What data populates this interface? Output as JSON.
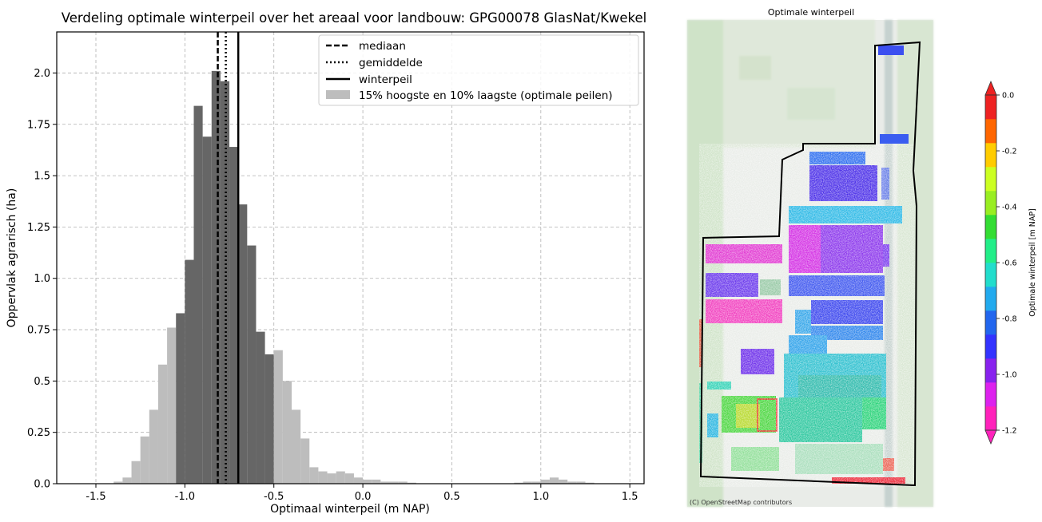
{
  "chart_data": [
    {
      "type": "bar",
      "title": "Verdeling optimale winterpeil over het areaal voor landbouw: GPG00078 GlasNat/Kwekel",
      "xlabel": "Optimaal winterpeil (m NAP)",
      "ylabel": "Oppervlak agrarisch (ha)",
      "xlim": [
        -1.72,
        1.58
      ],
      "ylim": [
        0,
        2.2
      ],
      "xticks": [
        -1.5,
        -1.0,
        -0.5,
        0.0,
        0.5,
        1.0,
        1.5
      ],
      "xtick_labels": [
        "-1.5",
        "-1.0",
        "-0.5",
        "0.0",
        "0.5",
        "1.0",
        "1.5"
      ],
      "yticks": [
        0,
        0.25,
        0.5,
        0.75,
        1.0,
        1.25,
        1.5,
        1.75,
        2.0
      ],
      "ytick_labels": [
        "0.0",
        "0.25",
        "0.5",
        "0.75",
        "1.0",
        "1.25",
        "1.5",
        "1.75",
        "2.0"
      ],
      "grid": true,
      "legend_position": "top-right",
      "legend": [
        {
          "label": "mediaan",
          "style": "dashed"
        },
        {
          "label": "gemiddelde",
          "style": "dotted"
        },
        {
          "label": "winterpeil",
          "style": "solid"
        },
        {
          "label": "15% hoogste en 10% laagste (optimale peilen)",
          "style": "patch"
        }
      ],
      "bin_width": 0.05,
      "bins": [
        {
          "x0": -1.4,
          "value": 0.01,
          "tail": true
        },
        {
          "x0": -1.35,
          "value": 0.03,
          "tail": true
        },
        {
          "x0": -1.3,
          "value": 0.11,
          "tail": true
        },
        {
          "x0": -1.25,
          "value": 0.23,
          "tail": true
        },
        {
          "x0": -1.2,
          "value": 0.36,
          "tail": true
        },
        {
          "x0": -1.15,
          "value": 0.58,
          "tail": true
        },
        {
          "x0": -1.1,
          "value": 0.76,
          "tail": true
        },
        {
          "x0": -1.05,
          "value": 0.83,
          "tail": false
        },
        {
          "x0": -1.0,
          "value": 1.09,
          "tail": false
        },
        {
          "x0": -0.95,
          "value": 1.84,
          "tail": false
        },
        {
          "x0": -0.9,
          "value": 1.69,
          "tail": false
        },
        {
          "x0": -0.85,
          "value": 2.01,
          "tail": false
        },
        {
          "x0": -0.8,
          "value": 1.96,
          "tail": false
        },
        {
          "x0": -0.75,
          "value": 1.64,
          "tail": false
        },
        {
          "x0": -0.7,
          "value": 1.36,
          "tail": false
        },
        {
          "x0": -0.65,
          "value": 1.16,
          "tail": false
        },
        {
          "x0": -0.6,
          "value": 0.74,
          "tail": false
        },
        {
          "x0": -0.55,
          "value": 0.63,
          "tail": false
        },
        {
          "x0": -0.5,
          "value": 0.65,
          "tail": true
        },
        {
          "x0": -0.45,
          "value": 0.5,
          "tail": true
        },
        {
          "x0": -0.4,
          "value": 0.36,
          "tail": true
        },
        {
          "x0": -0.35,
          "value": 0.22,
          "tail": true
        },
        {
          "x0": -0.3,
          "value": 0.08,
          "tail": true
        },
        {
          "x0": -0.25,
          "value": 0.06,
          "tail": true
        },
        {
          "x0": -0.2,
          "value": 0.05,
          "tail": true
        },
        {
          "x0": -0.15,
          "value": 0.06,
          "tail": true
        },
        {
          "x0": -0.1,
          "value": 0.05,
          "tail": true
        },
        {
          "x0": -0.05,
          "value": 0.03,
          "tail": true
        },
        {
          "x0": 0.0,
          "value": 0.02,
          "tail": true
        },
        {
          "x0": 0.05,
          "value": 0.02,
          "tail": true
        },
        {
          "x0": 0.1,
          "value": 0.01,
          "tail": true
        },
        {
          "x0": 0.15,
          "value": 0.01,
          "tail": true
        },
        {
          "x0": 0.2,
          "value": 0.01,
          "tail": true
        },
        {
          "x0": 0.25,
          "value": 0.005,
          "tail": true
        },
        {
          "x0": 0.85,
          "value": 0.005,
          "tail": true
        },
        {
          "x0": 0.9,
          "value": 0.01,
          "tail": true
        },
        {
          "x0": 0.95,
          "value": 0.01,
          "tail": true
        },
        {
          "x0": 1.0,
          "value": 0.02,
          "tail": true
        },
        {
          "x0": 1.05,
          "value": 0.03,
          "tail": true
        },
        {
          "x0": 1.1,
          "value": 0.02,
          "tail": true
        },
        {
          "x0": 1.15,
          "value": 0.01,
          "tail": true
        },
        {
          "x0": 1.2,
          "value": 0.01,
          "tail": true
        },
        {
          "x0": 1.25,
          "value": 0.005,
          "tail": true
        }
      ],
      "vlines": [
        {
          "name": "mediaan",
          "x": -0.815,
          "style": "dashed"
        },
        {
          "name": "gemiddelde",
          "x": -0.77,
          "style": "dotted"
        },
        {
          "name": "winterpeil",
          "x": -0.7,
          "style": "solid"
        }
      ],
      "colors": {
        "core": "#666666",
        "tail": "#bdbdbd",
        "grid": "#b0b0b0"
      }
    },
    {
      "type": "heatmap",
      "title": "Optimale winterpeil",
      "attribution": "(C) OpenStreetMap contributors",
      "colorbar_label": "Optimale winterpeil [m NAP]",
      "colorbar_ticks": [
        "0.0",
        "-0.2",
        "-0.4",
        "-0.6",
        "-0.8",
        "-1.0",
        "-1.2"
      ],
      "colorbar_range": [
        -1.2,
        0.0
      ],
      "colorbar_colors": [
        "#ff22bb",
        "#dd22ee",
        "#8822ee",
        "#3333ff",
        "#2266ee",
        "#22aaee",
        "#22ddcc",
        "#22ee88",
        "#33dd33",
        "#99ee22",
        "#ccff22",
        "#ffcc00",
        "#ff6600",
        "#ee2222"
      ],
      "colorbar_extend": "both"
    }
  ]
}
